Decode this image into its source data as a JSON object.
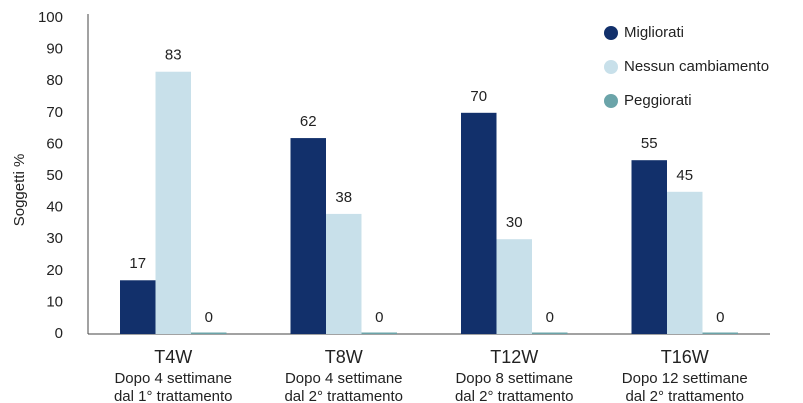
{
  "chart_data": {
    "type": "bar",
    "ylabel": "Soggetti %",
    "categories": [
      "T4W",
      "T8W",
      "T12W",
      "T16W"
    ],
    "category_subtitles": [
      [
        "Dopo 4 settimane",
        "dal 1° trattamento"
      ],
      [
        "Dopo 4 settimane",
        "dal 2° trattamento"
      ],
      [
        "Dopo 8 settimane",
        "dal 2° trattamento"
      ],
      [
        "Dopo 12 settimane",
        "dal 2° trattamento"
      ]
    ],
    "series": [
      {
        "name": "Migliorati",
        "color": "#12306b",
        "values": [
          17,
          62,
          70,
          55
        ]
      },
      {
        "name": "Nessun cambiamento",
        "color": "#c8e0ea",
        "values": [
          83,
          38,
          30,
          45
        ]
      },
      {
        "name": "Peggiorati",
        "color": "#6ba4a9",
        "values": [
          0,
          0,
          0,
          0
        ]
      }
    ],
    "ylim": [
      0,
      100
    ],
    "yticks": [
      0,
      10,
      20,
      30,
      40,
      50,
      60,
      70,
      80,
      90,
      100
    ],
    "legend": "top-right"
  }
}
